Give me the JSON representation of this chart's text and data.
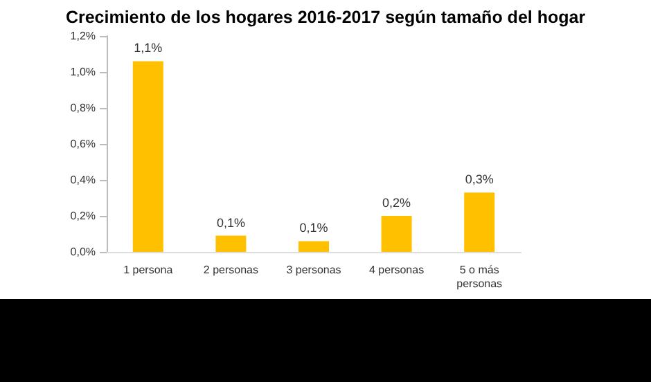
{
  "chart_data": {
    "type": "bar",
    "title": "Crecimiento de los hogares 2016-2017 según tamaño del hogar",
    "categories": [
      "1 persona",
      "2 personas",
      "3 personas",
      "4 personas",
      "5 o más\npersonas"
    ],
    "values": [
      1.06,
      0.09,
      0.06,
      0.2,
      0.33
    ],
    "color": "#ffc000",
    "value_labels": [
      "1,1%",
      "0,1%",
      "0,1%",
      "0,2%",
      "0,3%"
    ],
    "ylim": [
      0,
      1.2
    ],
    "yticks": [
      {
        "value": 0,
        "label": "0,0%"
      },
      {
        "value": 0.2,
        "label": "0,2%"
      },
      {
        "value": 0.4,
        "label": "0,4%"
      },
      {
        "value": 0.6,
        "label": "0,6%"
      },
      {
        "value": 0.8,
        "label": "0,8%"
      },
      {
        "value": 1.0,
        "label": "1,0%"
      },
      {
        "value": 1.2,
        "label": "1,2%"
      }
    ],
    "grid": false
  }
}
